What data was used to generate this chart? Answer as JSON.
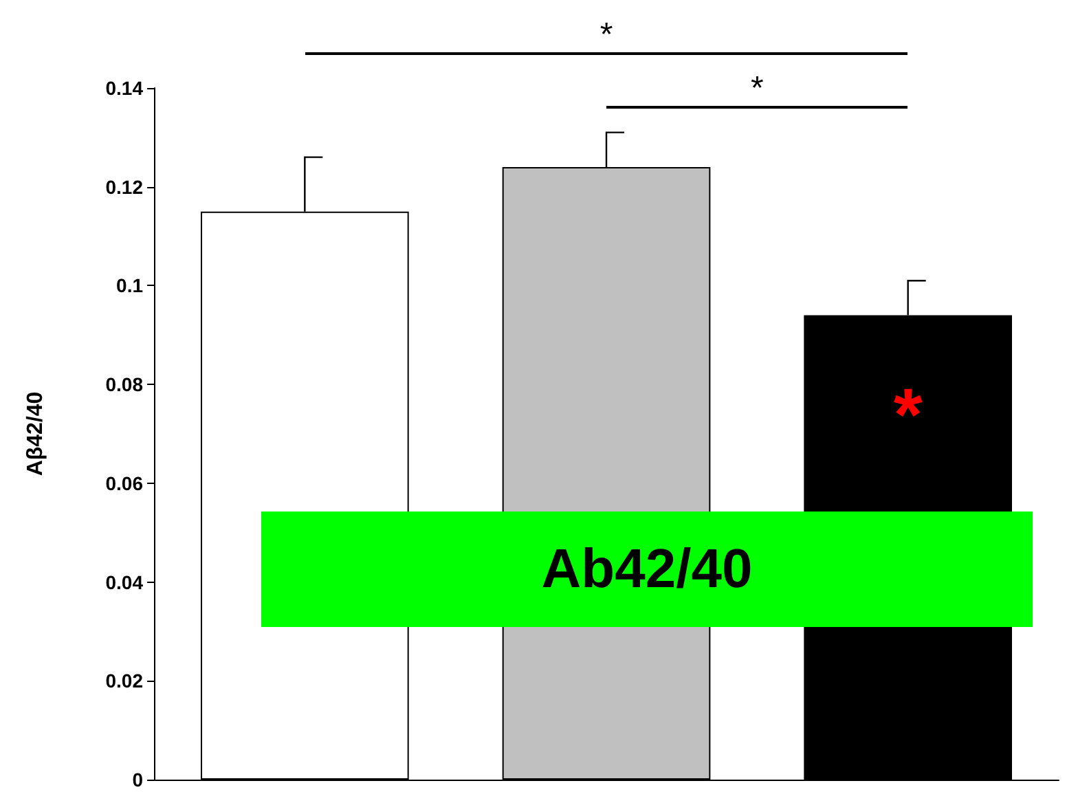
{
  "chart_data": {
    "type": "bar",
    "ylabel": "Aβ42/40",
    "categories": [
      null,
      null,
      null
    ],
    "values": [
      0.115,
      0.124,
      0.094
    ],
    "colors": [
      "#ffffff",
      "#c0c0c0",
      "#000000"
    ],
    "errors": [
      [
        0.115,
        0.126
      ],
      [
        0.124,
        0.131
      ],
      [
        0.094,
        0.101
      ]
    ],
    "ylim": [
      0,
      0.14
    ],
    "yticks": [
      0,
      0.02,
      0.04,
      0.06,
      0.08,
      0.1,
      0.12,
      0.14
    ],
    "grid": false,
    "annotations": [
      "*",
      "*",
      "*",
      "Ab42/40"
    ]
  }
}
